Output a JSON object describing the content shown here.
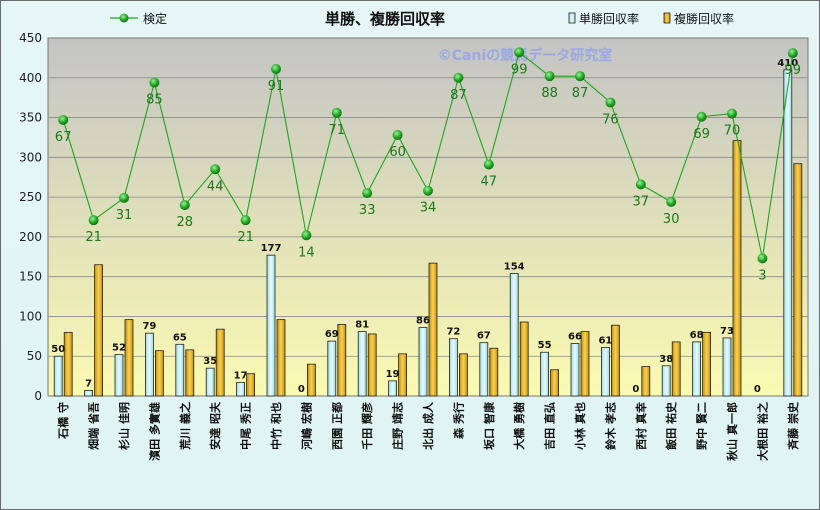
{
  "chart_data": {
    "type": "bar",
    "title": "単勝、複勝回収率",
    "watermark": "©Caniの競馬データ研究室",
    "ylim": [
      0,
      450
    ],
    "yticks": [
      0,
      50,
      100,
      150,
      200,
      250,
      300,
      350,
      400,
      450
    ],
    "grid": true,
    "legend_placement": "top",
    "categories": [
      "石橋 守",
      "畑端 省吾",
      "杉山 佳明",
      "濱田 多實雄",
      "荒川 義之",
      "安達 昭夫",
      "中尾 秀正",
      "中竹 和也",
      "河嶋 宏樹",
      "西園 正都",
      "千田 輝彦",
      "庄野 靖志",
      "北出 成人",
      "森 秀行",
      "坂口 智康",
      "大橋 勇樹",
      "吉田 直弘",
      "小林 真也",
      "鈴木 孝志",
      "西村 真幸",
      "飯田 祐史",
      "野中 賢二",
      "秋山 真一郎",
      "大根田 裕之",
      "斉藤 崇史"
    ],
    "series": [
      {
        "name": "単勝回収率",
        "kind": "bar",
        "color": "#c9eef2",
        "values": [
          50,
          7,
          52,
          79,
          65,
          35,
          17,
          177,
          0,
          69,
          81,
          19,
          86,
          72,
          67,
          154,
          55,
          66,
          61,
          0,
          38,
          68,
          73,
          0,
          410
        ]
      },
      {
        "name": "複勝回収率",
        "kind": "bar",
        "color": "#e8b820",
        "values": [
          80,
          165,
          96,
          57,
          58,
          84,
          28,
          96,
          40,
          90,
          78,
          53,
          167,
          53,
          60,
          93,
          33,
          81,
          89,
          37,
          68,
          80,
          321,
          0,
          292
        ]
      },
      {
        "name": "検定",
        "kind": "line",
        "color": "#22a422",
        "y_values": [
          347,
          221,
          249,
          394,
          240,
          285,
          221,
          411,
          202,
          356,
          255,
          328,
          258,
          400,
          291,
          432,
          402,
          402,
          369,
          266,
          244,
          351,
          355,
          173,
          431
        ],
        "labels": [
          67,
          21,
          31,
          85,
          28,
          44,
          21,
          91,
          14,
          71,
          33,
          60,
          34,
          87,
          47,
          99,
          88,
          87,
          76,
          37,
          30,
          69,
          70,
          3,
          99
        ]
      }
    ],
    "colors": {
      "plot_top": "#c8c8c8",
      "plot_bottom": "#fbfab4",
      "gridline": "#8a8a8a"
    }
  }
}
